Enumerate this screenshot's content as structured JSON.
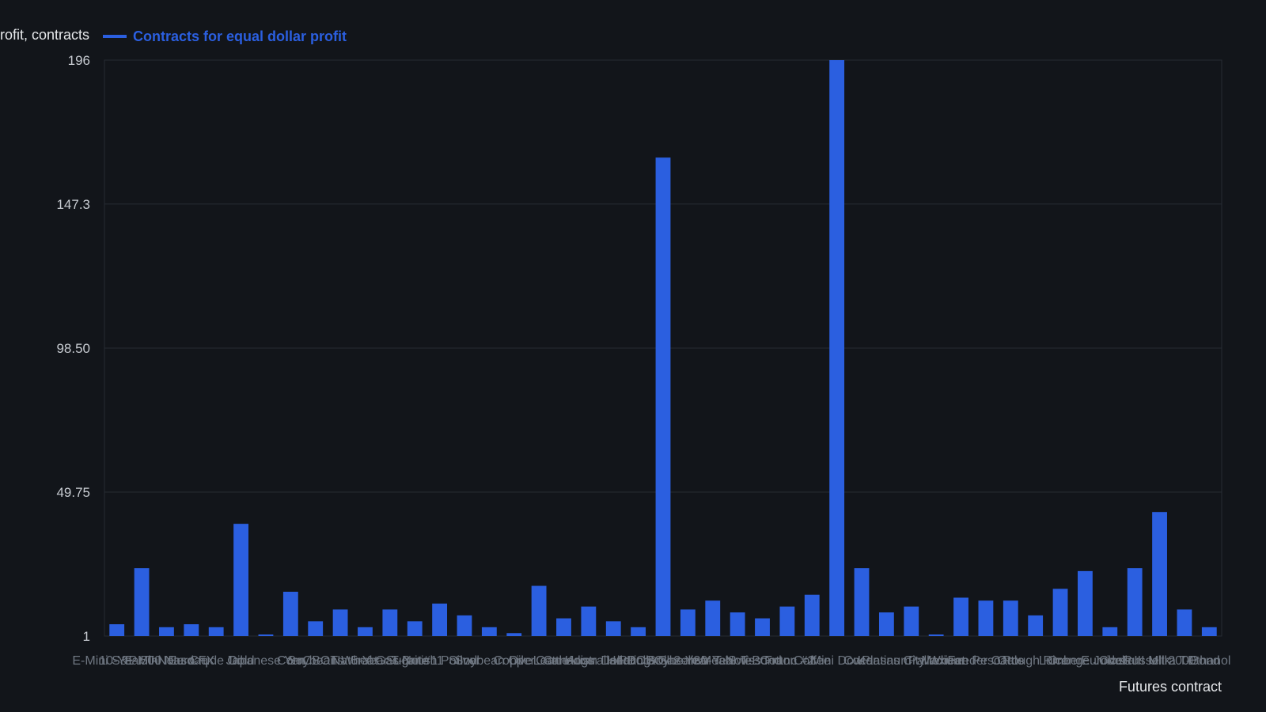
{
  "chart_data": {
    "type": "bar",
    "ylabel": "Dollar profit, contracts",
    "xlabel": "Futures contract",
    "series": [
      {
        "name": "Contracts for equal dollar profit",
        "values": [
          5,
          24,
          4,
          5,
          4,
          39,
          1,
          16,
          6,
          10,
          4,
          10,
          6,
          12,
          8,
          4,
          2,
          18,
          7,
          11,
          6,
          4,
          163,
          10,
          13,
          9,
          7,
          11,
          15,
          196,
          24,
          9,
          11,
          1,
          14,
          13,
          13,
          8,
          17,
          23,
          4,
          24,
          43,
          10,
          4
        ]
      }
    ],
    "categories": [
      "E-Mini S&P 500",
      "10-Year T-Note",
      "E-Mini Nasdaq",
      "Euro FX",
      "Crude Oil",
      "Gold",
      "Japanese Yen",
      "Corn",
      "Soybeans",
      "CBOT Wheat",
      "Natural Gas",
      "5-Year T-Note",
      "Sugar #11",
      "British Pound",
      "Silver",
      "Soybean Oil",
      "Copper",
      "Live Cattle",
      "Lean Hogs",
      "Canadian Dollar",
      "Australian Dollar",
      "Heating Oil",
      "RBOB Gasoline",
      "Soybean Meal",
      "2-Year T-Note",
      "30-Year T-Bond",
      "Swiss Franc",
      "Cotton #2",
      "Coffee",
      "Mini Dow",
      "Cocoa",
      "Platinum",
      "Kansas City Wheat",
      "Palladium",
      "Mexican Peso",
      "Feeder Cattle",
      "Oats",
      "Rough Rice",
      "Lumber",
      "Orange Juice",
      "Eurodollar",
      "Class III Milk",
      "Russell 2000",
      "Ultra T-Bond",
      "Ethanol"
    ],
    "visible_category_labels": [
      "E-Mini S&P 500",
      "10-Year T-Note",
      "E-Mini Nasdaq",
      "Euro FX",
      "Crude Oil",
      "Gold",
      "Japanese Yen",
      "Corn",
      "Soybeans",
      "CBOT Wheat",
      "Natural Gas",
      "5-Year T-Note",
      "Sugar #11",
      "British Pound",
      "Silver",
      "Soybean Oil",
      "Copper",
      "Live Cattle",
      "Lean Hogs",
      "Canadian Dollar",
      "Australian Dollar",
      "Heating Oil",
      "RBOB Gasoline",
      "Soybean Meal",
      "2-Year T-Note",
      "30-Year T-Bond",
      "Swiss Franc",
      "Cotton #2",
      "Coffee",
      "Mini Dow",
      "Cocoa",
      "Platinum",
      "Kansas City Wheat",
      "Palladium",
      "Mexican Peso",
      "Feeder Cattle",
      "Oats",
      "Rough Rice",
      "Lumber",
      "Orange Juice",
      "Eurodollar",
      "Class III Milk",
      "Russell 2000",
      "Ultra T-Bond",
      "Ethanol"
    ],
    "yticks": [
      "1",
      "49.75",
      "98.50",
      "147.3",
      "196"
    ],
    "ylim": [
      1,
      196
    ],
    "grid": true,
    "legend_position": "top-left",
    "colors": {
      "bar": "#2b5fe0",
      "legend_text": "#2b5fe0",
      "grid": "#262b33",
      "background": "#12151a"
    }
  }
}
